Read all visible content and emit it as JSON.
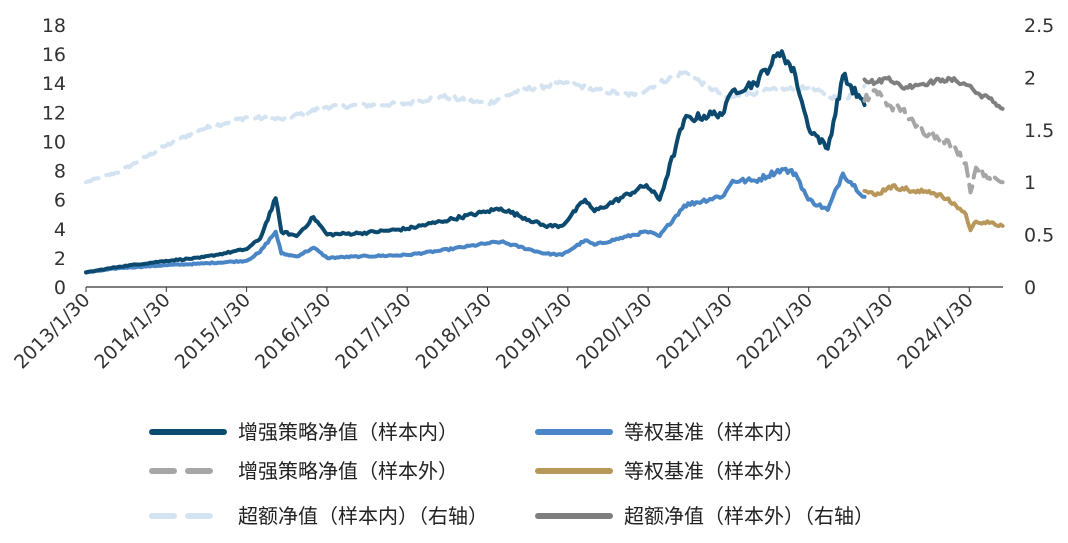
{
  "chart_data": {
    "type": "line",
    "x_tick_labels": [
      "2013/1/30",
      "2014/1/30",
      "2015/1/30",
      "2016/1/30",
      "2017/1/30",
      "2018/1/30",
      "2019/1/30",
      "2020/1/30",
      "2021/1/30",
      "2022/1/30",
      "2023/1/30",
      "2024/1/30"
    ],
    "x_range": [
      "2013-01-30",
      "2024-06-30"
    ],
    "left_axis": {
      "ticks": [
        "0",
        "2",
        "4",
        "6",
        "8",
        "10",
        "12",
        "14",
        "16",
        "18"
      ],
      "ylim": [
        0,
        18
      ]
    },
    "right_axis": {
      "ticks": [
        "0",
        "0.5",
        "1",
        "1.5",
        "2",
        "2.5"
      ],
      "ylim": [
        0,
        2.5
      ]
    },
    "grid": false,
    "legend_position": "bottom",
    "series": [
      {
        "name": "增强策略净值（样本内）",
        "axis": "left",
        "color": "#0B4A6E",
        "style": "solid",
        "x": [
          "2013-01-30",
          "2013-07-01",
          "2014-01-30",
          "2014-07-01",
          "2015-01-30",
          "2015-04-01",
          "2015-06-12",
          "2015-07-08",
          "2015-09-15",
          "2015-12-01",
          "2016-02-01",
          "2016-07-01",
          "2017-01-30",
          "2017-07-01",
          "2018-01-30",
          "2018-04-01",
          "2018-10-18",
          "2019-01-04",
          "2019-04-19",
          "2019-06-01",
          "2020-01-23",
          "2020-03-23",
          "2020-07-13",
          "2021-01-10",
          "2021-02-18",
          "2021-06-01",
          "2021-09-30",
          "2021-12-01",
          "2022-01-28",
          "2022-04-27",
          "2022-07-05",
          "2022-10-11"
        ],
        "y": [
          1.0,
          1.4,
          1.8,
          2.0,
          2.6,
          3.3,
          6.1,
          3.8,
          3.5,
          4.8,
          3.6,
          3.7,
          4.0,
          4.5,
          5.2,
          5.4,
          4.2,
          4.2,
          6.0,
          5.2,
          7.0,
          6.0,
          11.5,
          12.0,
          13.5,
          14.0,
          16.2,
          14.5,
          11.0,
          9.5,
          14.5,
          12.5
        ]
      },
      {
        "name": "等权基准（样本内）",
        "axis": "left",
        "color": "#4A86C5",
        "style": "solid",
        "x": [
          "2013-01-30",
          "2013-07-01",
          "2014-01-30",
          "2014-07-01",
          "2015-01-30",
          "2015-04-01",
          "2015-06-12",
          "2015-07-08",
          "2015-09-15",
          "2015-12-01",
          "2016-02-01",
          "2016-07-01",
          "2017-01-30",
          "2017-07-01",
          "2018-01-30",
          "2018-04-01",
          "2018-10-18",
          "2019-01-04",
          "2019-04-19",
          "2019-06-01",
          "2020-01-23",
          "2020-03-23",
          "2020-07-13",
          "2021-01-10",
          "2021-02-18",
          "2021-06-01",
          "2021-09-30",
          "2021-12-01",
          "2022-01-28",
          "2022-04-27",
          "2022-07-05",
          "2022-10-11"
        ],
        "y": [
          1.0,
          1.3,
          1.5,
          1.6,
          1.8,
          2.4,
          3.8,
          2.3,
          2.1,
          2.7,
          2.0,
          2.1,
          2.2,
          2.5,
          3.0,
          3.1,
          2.3,
          2.2,
          3.2,
          2.9,
          3.8,
          3.5,
          5.6,
          6.3,
          7.3,
          7.3,
          8.1,
          7.8,
          6.0,
          5.3,
          7.8,
          6.2
        ]
      },
      {
        "name": "增强策略净值（样本外）",
        "axis": "left",
        "color": "#A6A6A6",
        "style": "dashed",
        "x": [
          "2022-10-11",
          "2022-12-01",
          "2023-01-30",
          "2023-04-01",
          "2023-06-01",
          "2023-08-01",
          "2023-10-01",
          "2023-12-01",
          "2024-01-15",
          "2024-02-05",
          "2024-03-01",
          "2024-05-01",
          "2024-06-30"
        ],
        "y": [
          12.8,
          13.5,
          12.5,
          12.2,
          11.0,
          10.5,
          10.2,
          9.5,
          8.5,
          6.5,
          8.2,
          7.5,
          7.2
        ]
      },
      {
        "name": "等权基准（样本外）",
        "axis": "left",
        "color": "#B8975A",
        "style": "solid",
        "x": [
          "2022-10-11",
          "2022-12-01",
          "2023-01-30",
          "2023-04-01",
          "2023-06-01",
          "2023-08-01",
          "2023-10-01",
          "2023-12-01",
          "2024-01-15",
          "2024-02-05",
          "2024-03-01",
          "2024-05-01",
          "2024-06-30"
        ],
        "y": [
          6.6,
          6.3,
          6.9,
          6.8,
          6.5,
          6.6,
          6.2,
          5.6,
          5.0,
          3.9,
          4.5,
          4.4,
          4.2
        ]
      },
      {
        "name": "超额净值（样本内）（右轴）",
        "axis": "right",
        "color": "#D4E3F2",
        "style": "dashed",
        "x": [
          "2013-01-30",
          "2013-07-01",
          "2014-01-30",
          "2014-07-01",
          "2015-01-30",
          "2015-07-08",
          "2016-01-30",
          "2017-01-30",
          "2017-07-01",
          "2018-01-30",
          "2018-07-01",
          "2019-01-30",
          "2019-06-01",
          "2019-12-01",
          "2020-03-23",
          "2020-07-13",
          "2021-01-30",
          "2021-07-01",
          "2022-01-30",
          "2022-07-01",
          "2022-10-11"
        ],
        "y": [
          1.0,
          1.1,
          1.35,
          1.5,
          1.62,
          1.6,
          1.72,
          1.75,
          1.82,
          1.75,
          1.88,
          1.95,
          1.88,
          1.83,
          1.95,
          2.05,
          1.8,
          1.87,
          1.9,
          1.78,
          1.92
        ]
      },
      {
        "name": "超额净值（样本外）（右轴）",
        "axis": "right",
        "color": "#7F7F7F",
        "style": "solid",
        "x": [
          "2022-10-11",
          "2022-12-01",
          "2023-01-30",
          "2023-04-01",
          "2023-06-01",
          "2023-08-01",
          "2023-10-01",
          "2023-12-01",
          "2024-01-15",
          "2024-02-05",
          "2024-03-01",
          "2024-05-01",
          "2024-06-30"
        ],
        "y": [
          1.98,
          1.95,
          2.0,
          1.9,
          1.93,
          1.95,
          1.98,
          1.97,
          1.93,
          1.92,
          1.85,
          1.8,
          1.7
        ]
      }
    ],
    "legend": [
      {
        "label": "增强策略净值（样本内）",
        "color": "#0B4A6E",
        "style": "solid"
      },
      {
        "label": "等权基准（样本内）",
        "color": "#4A86C5",
        "style": "solid"
      },
      {
        "label": "增强策略净值（样本外）",
        "color": "#A6A6A6",
        "style": "dashed"
      },
      {
        "label": "等权基准（样本外）",
        "color": "#B8975A",
        "style": "solid"
      },
      {
        "label": "超额净值（样本内）（右轴）",
        "color": "#D4E3F2",
        "style": "dashed"
      },
      {
        "label": "超额净值（样本外）（右轴）",
        "color": "#7F7F7F",
        "style": "solid"
      }
    ]
  }
}
